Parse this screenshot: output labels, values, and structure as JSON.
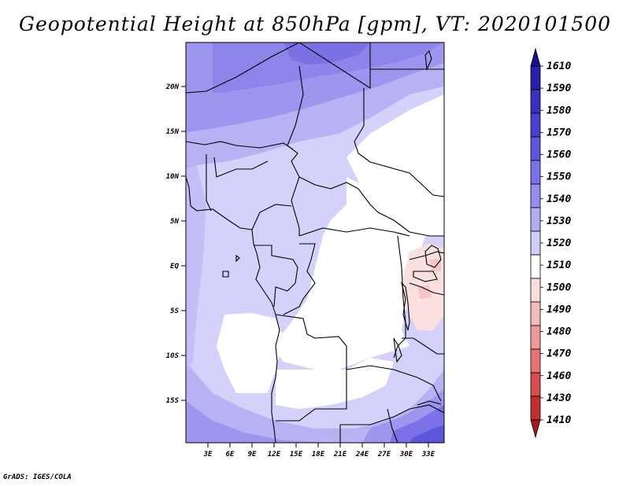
{
  "title": "Geopotential Height at 850hPa [gpm], VT: 2020101500",
  "credit": "GrADS: IGES/COLA",
  "map": {
    "lat_labels": [
      "20N",
      "15N",
      "10N",
      "5N",
      "EQ",
      "5S",
      "10S",
      "15S"
    ],
    "lon_labels": [
      "3E",
      "6E",
      "9E",
      "12E",
      "15E",
      "18E",
      "21E",
      "24E",
      "27E",
      "30E",
      "33E"
    ]
  },
  "colorbar": {
    "levels": [
      "1610",
      "1590",
      "1580",
      "1570",
      "1560",
      "1550",
      "1540",
      "1530",
      "1520",
      "1510",
      "1500",
      "1490",
      "1480",
      "1470",
      "1460",
      "1430",
      "1410"
    ],
    "colors": [
      "#1a0f8c",
      "#2a1fa8",
      "#3a2fbf",
      "#4a40d0",
      "#5e55dd",
      "#7a72e6",
      "#958eee",
      "#b2adf4",
      "#cfcdf9",
      "#ffffff",
      "#fbdede",
      "#f6bcbc",
      "#ef9a9a",
      "#e57373",
      "#d94c4c",
      "#c42e2e",
      "#a31818"
    ]
  }
}
